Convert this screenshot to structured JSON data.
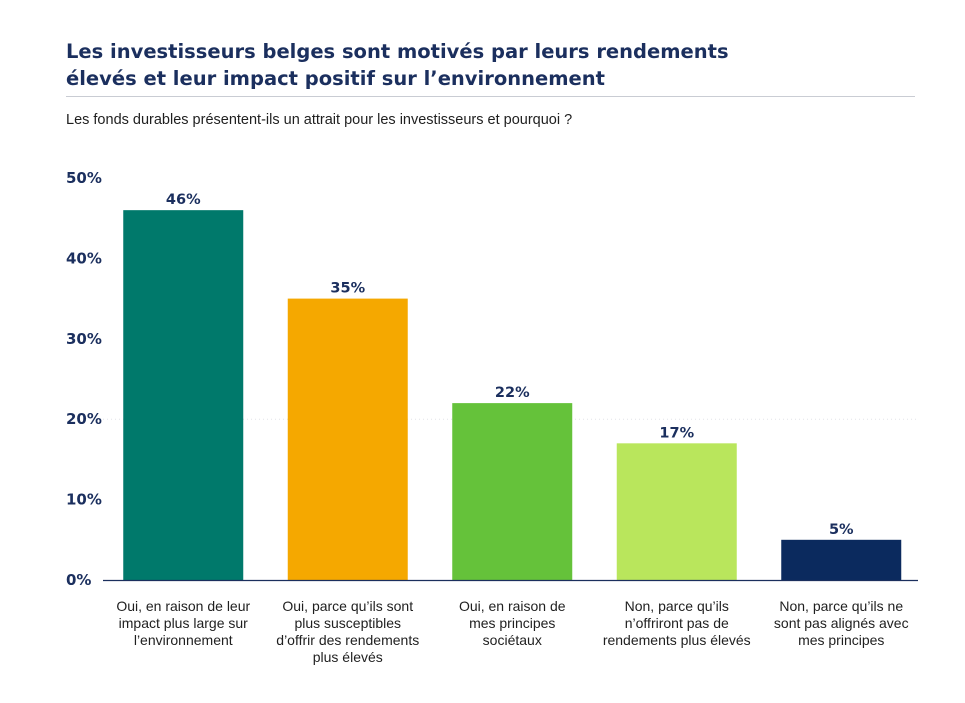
{
  "title_lines": [
    "Les investisseurs belges sont motivés par leurs rendements",
    "élevés et leur impact positif sur l’environnement"
  ],
  "subtitle": "Les fonds durables présentent-ils un attrait pour les investisseurs et pourquoi ?",
  "chart_data": {
    "type": "bar",
    "categories": [
      "Oui, en raison de leur impact plus large sur l’environnement",
      "Oui, parce qu’ils sont plus susceptibles d’offrir des rendements plus élevés",
      "Oui, en raison de mes principes sociétaux",
      "Non, parce qu’ils n’offriront pas de rendements plus élevés",
      "Non, parce qu’ils ne sont pas alignés avec mes principes"
    ],
    "category_lines": [
      [
        "Oui, en raison de leur",
        "impact plus large sur",
        "l’environnement"
      ],
      [
        "Oui, parce qu’ils sont",
        "plus susceptibles",
        "d’offrir des rendements",
        "plus élevés"
      ],
      [
        "Oui, en raison de",
        "mes principes",
        "sociétaux"
      ],
      [
        "Non, parce qu’ils",
        "n’offriront pas de",
        "rendements plus élevés"
      ],
      [
        "Non, parce qu’ils ne",
        "sont pas alignés avec",
        "mes principes"
      ]
    ],
    "values": [
      46,
      35,
      22,
      17,
      5
    ],
    "value_labels": [
      "46%",
      "35%",
      "22%",
      "17%",
      "5%"
    ],
    "colors": [
      "#00796b",
      "#f5a800",
      "#65c23a",
      "#b9e65c",
      "#0b2a5e"
    ],
    "ylim": [
      0,
      50
    ],
    "yticks": [
      0,
      10,
      20,
      30,
      40,
      50
    ],
    "ytick_labels": [
      "0%",
      "10%",
      "20%",
      "30%",
      "40%",
      "50%"
    ],
    "grid": "faint dotted at 20%",
    "xlabel": "",
    "ylabel": ""
  }
}
